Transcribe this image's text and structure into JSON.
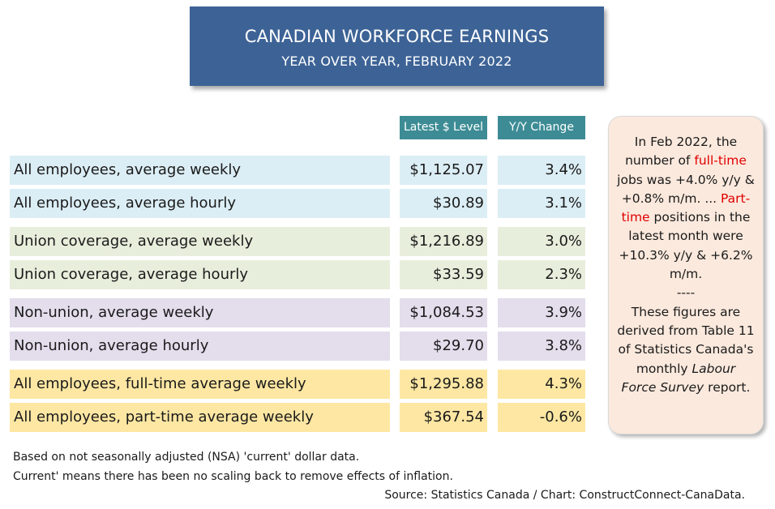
{
  "chart_data": {
    "type": "table",
    "title": "CANADIAN WORKFORCE EARNINGS",
    "subtitle": "YEAR OVER YEAR, FEBRUARY 2022",
    "columns": [
      "Latest $ Level",
      "Y/Y Change"
    ],
    "rows": [
      {
        "label": "All employees, average weekly",
        "level": "$1,125.07",
        "change": "3.4%",
        "group": 0
      },
      {
        "label": "All employees, average hourly",
        "level": "$30.89",
        "change": "3.1%",
        "group": 0
      },
      {
        "label": "Union coverage, average weekly",
        "level": "$1,216.89",
        "change": "3.0%",
        "group": 1
      },
      {
        "label": "Union coverage, average hourly",
        "level": "$33.59",
        "change": "2.3%",
        "group": 1
      },
      {
        "label": "Non-union, average weekly",
        "level": "$1,084.53",
        "change": "3.9%",
        "group": 2
      },
      {
        "label": "Non-union, average hourly",
        "level": "$29.70",
        "change": "3.8%",
        "group": 2
      },
      {
        "label": "All employees, full-time average weekly",
        "level": "$1,295.88",
        "change": "4.3%",
        "group": 3
      },
      {
        "label": "All employees, part-time average weekly",
        "level": "$367.54",
        "change": "-0.6%",
        "group": 3
      }
    ],
    "group_colors": [
      "#dceef5",
      "#e8eedc",
      "#e3ddec",
      "#fde7a3"
    ],
    "header_color": "#3d8c95",
    "title_color": "#3d6396"
  },
  "note": {
    "p1": "In Feb 2022, the number of ",
    "hl1": "full-time",
    "p2": " jobs was +4.0% y/y & +0.8% m/m. ... ",
    "hl2": "Part-time",
    "p3": " positions in the latest month were +10.3% y/y & +6.2% m/m.",
    "sep": "----",
    "p4": "These figures are derived from Table 11 of Statistics Canada's monthly ",
    "ital": "Labour Force Survey",
    "p5": " report.",
    "highlight_color": "#e00000"
  },
  "footnotes": {
    "line1": "Based on not seasonally adjusted (NSA) 'current' dollar data.",
    "line2": "Current' means there has been no scaling back to remove effects of inflation.",
    "source": "Source: Statistics Canada / Chart: ConstructConnect-CanaData."
  }
}
